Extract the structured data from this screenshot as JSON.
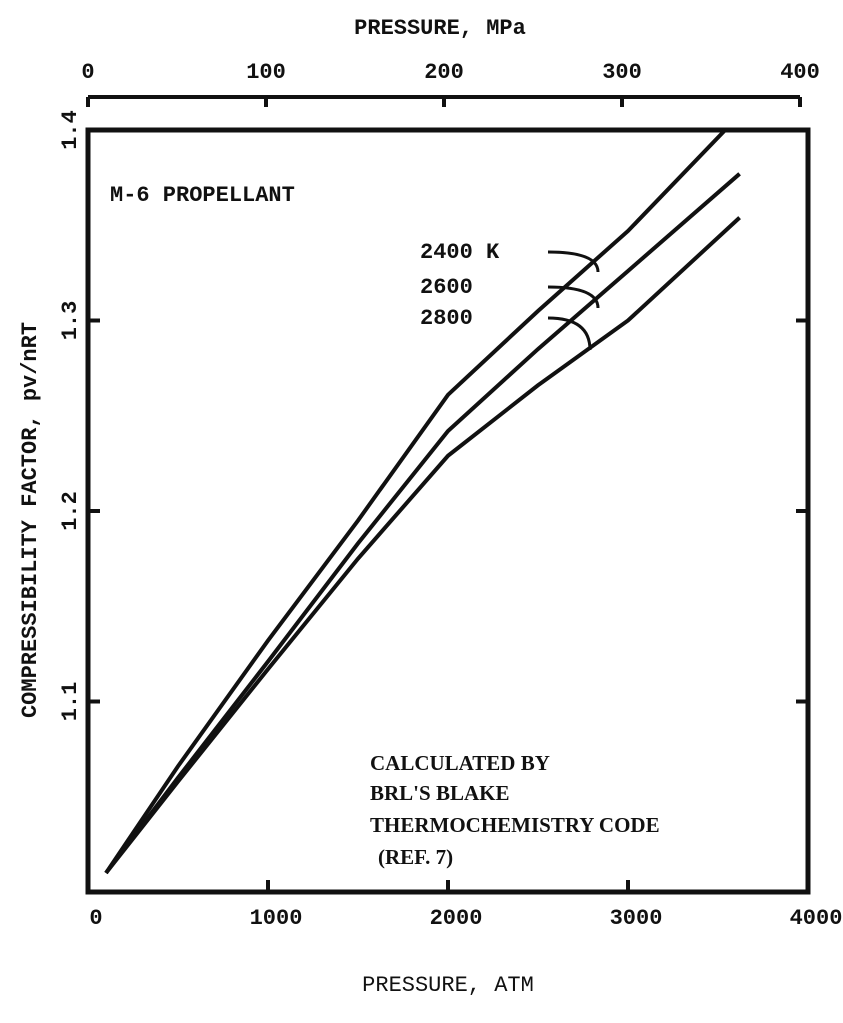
{
  "chart_data": {
    "type": "line",
    "x_label": "PRESSURE, ATM",
    "y_label": "COMPRESSIBILITY FACTOR, pv/nRT",
    "xlim": [
      0,
      4000
    ],
    "xticks": [
      0,
      1000,
      2000,
      3000,
      4000
    ],
    "ylim": [
      1.0,
      1.4
    ],
    "yticks": [
      1.1,
      1.2,
      1.3,
      1.4
    ],
    "top_axis": {
      "label": "PRESSURE, MPa",
      "xlim": [
        0,
        400
      ],
      "xticks": [
        0,
        100,
        200,
        300,
        400
      ]
    },
    "annotations": [
      "M-6 PROPELLANT",
      "CALCULATED BY",
      "BRL'S BLAKE",
      "THERMOCHEMISTRY CODE",
      "(REF. 7)"
    ],
    "series": [
      {
        "name": "2400 K",
        "color": "#111111",
        "x": [
          100,
          500,
          1000,
          1500,
          2000,
          2500,
          3000,
          3540
        ],
        "values": [
          1.01,
          1.066,
          1.132,
          1.195,
          1.261,
          1.305,
          1.347,
          1.4
        ]
      },
      {
        "name": "2600",
        "color": "#111111",
        "x": [
          100,
          500,
          1000,
          1500,
          2000,
          2500,
          3000,
          3620
        ],
        "values": [
          1.01,
          1.06,
          1.121,
          1.183,
          1.242,
          1.285,
          1.326,
          1.377
        ]
      },
      {
        "name": "2800",
        "color": "#111111",
        "x": [
          100,
          500,
          1000,
          1500,
          2000,
          2500,
          3000,
          3620
        ],
        "values": [
          1.01,
          1.058,
          1.117,
          1.175,
          1.229,
          1.266,
          1.3,
          1.354
        ]
      }
    ]
  }
}
